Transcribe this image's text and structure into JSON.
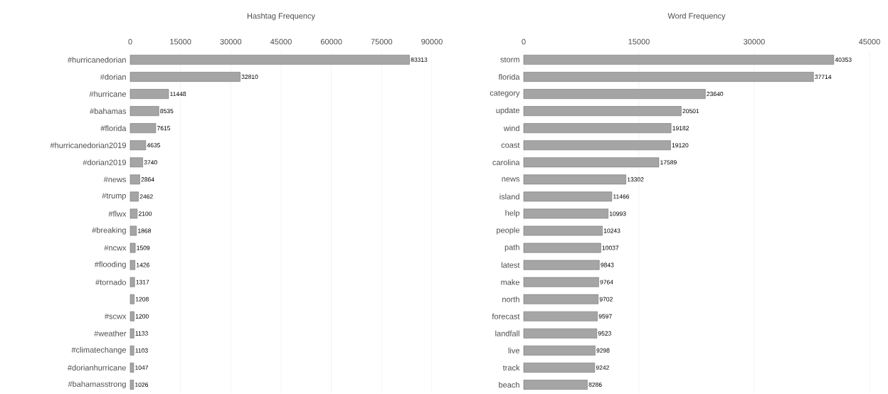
{
  "chart_data": [
    {
      "type": "bar",
      "orientation": "horizontal",
      "title": "Hashtag Frequency",
      "categories": [
        "#hurricanedorian",
        "#dorian",
        "#hurricane",
        "#bahamas",
        "#florida",
        "#hurricanedorian2019",
        "#dorian2019",
        "#news",
        "#trump",
        "#flwx",
        "#breaking",
        "#ncwx",
        "#flooding",
        "#tornado",
        null,
        "#scwx",
        "#weather",
        "#climatechange",
        "#dorianhurricane",
        "#bahamasstrong"
      ],
      "values": [
        83313,
        32810,
        11448,
        8535,
        7615,
        4635,
        3740,
        2864,
        2462,
        2100,
        1868,
        1509,
        1426,
        1317,
        1208,
        1200,
        1133,
        1103,
        1047,
        1026
      ],
      "color": "#a5a5a5",
      "xlim": [
        0,
        90000
      ],
      "xticks": [
        0,
        15000,
        30000,
        45000,
        60000,
        75000,
        90000
      ],
      "grid": "x",
      "data_labels": true
    },
    {
      "type": "bar",
      "orientation": "horizontal",
      "title": "Word Frequency",
      "categories": [
        "storm",
        "florida",
        "category",
        "update",
        "wind",
        "coast",
        "carolina",
        "news",
        "island",
        "help",
        "people",
        "path",
        "latest",
        "make",
        "north",
        "forecast",
        "landfall",
        "live",
        "track",
        "beach"
      ],
      "values": [
        40353,
        37714,
        23640,
        20501,
        19182,
        19120,
        17589,
        13302,
        11466,
        10993,
        10243,
        10037,
        9843,
        9764,
        9702,
        9597,
        9523,
        9298,
        9242,
        8286
      ],
      "color": "#a5a5a5",
      "xlim": [
        0,
        45000
      ],
      "xticks": [
        0,
        15000,
        30000,
        45000
      ],
      "grid": "x",
      "data_labels": true
    }
  ]
}
